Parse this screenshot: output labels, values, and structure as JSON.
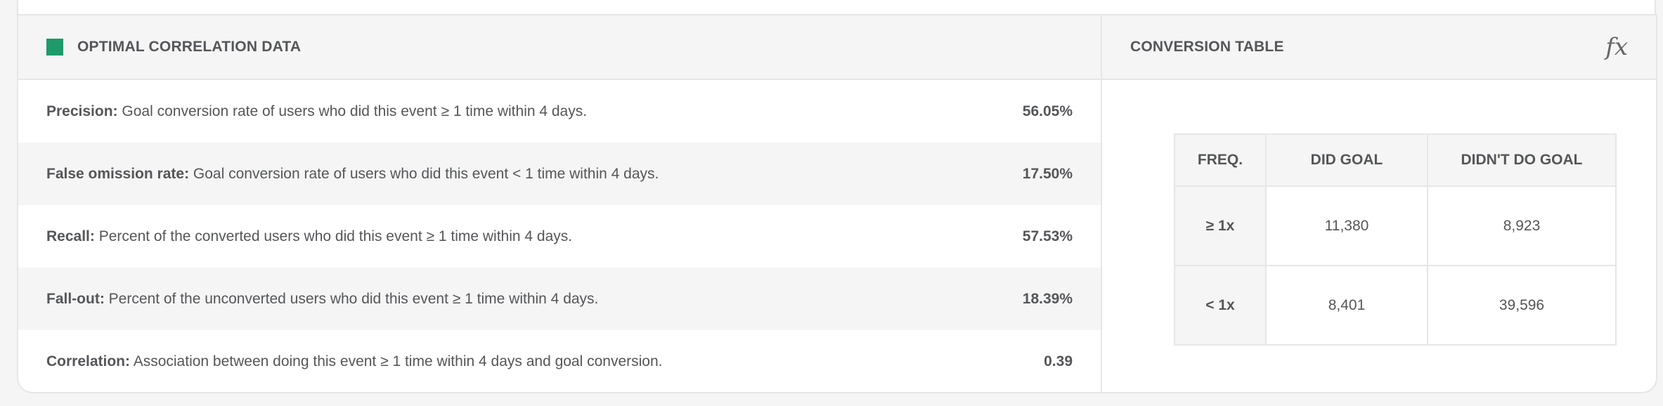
{
  "correlation_panel": {
    "title": "OPTIMAL CORRELATION DATA",
    "accent_color": "#1f9a6a",
    "rows": [
      {
        "label": "Precision:",
        "description": "Goal conversion rate of users who did this event ≥ 1 time within 4 days.",
        "value": "56.05%"
      },
      {
        "label": "False omission rate:",
        "description": "Goal conversion rate of users who did this event < 1 time within 4 days.",
        "value": "17.50%"
      },
      {
        "label": "Recall:",
        "description": "Percent of the converted users who did this event ≥ 1 time within 4 days.",
        "value": "57.53%"
      },
      {
        "label": "Fall-out:",
        "description": "Percent of the unconverted users who did this event ≥ 1 time within 4 days.",
        "value": "18.39%"
      },
      {
        "label": "Correlation:",
        "description": "Association between doing this event ≥ 1 time within 4 days and goal conversion.",
        "value": "0.39"
      }
    ]
  },
  "conversion_panel": {
    "title": "CONVERSION TABLE",
    "formula_icon": "fx",
    "headers": [
      "FREQ.",
      "DID GOAL",
      "DIDN'T DO GOAL"
    ],
    "rows": [
      {
        "freq": "≥ 1x",
        "did_goal": "11,380",
        "didnt_do_goal": "8,923"
      },
      {
        "freq": "< 1x",
        "did_goal": "8,401",
        "didnt_do_goal": "39,596"
      }
    ]
  }
}
